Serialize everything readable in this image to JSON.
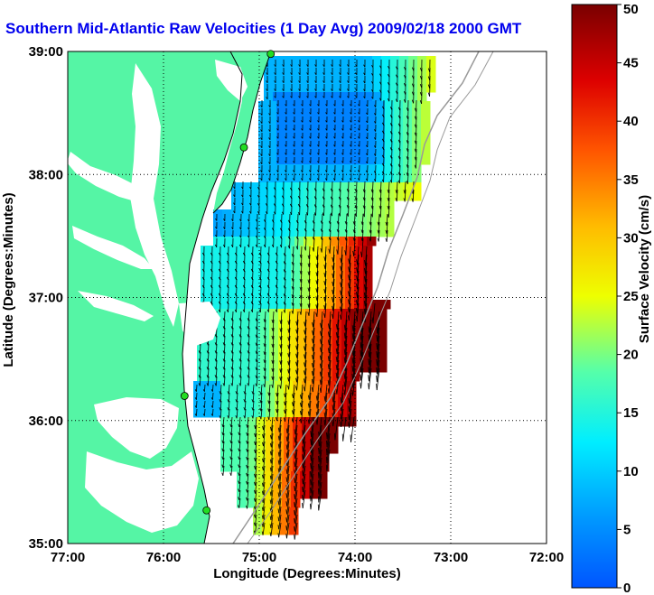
{
  "title": "Southern Mid-Atlantic Raw Velocities (1 Day Avg) 2009/02/18 2000 GMT",
  "x_axis": {
    "label": "Longitude (Degrees:Minutes)",
    "ticks": [
      "77:00",
      "76:00",
      "75:00",
      "74:00",
      "73:00",
      "72:00"
    ]
  },
  "y_axis": {
    "label": "Latitude (Degrees:Minutes)",
    "ticks": [
      "39:00",
      "38:00",
      "37:00",
      "36:00",
      "35:00"
    ]
  },
  "colorbar": {
    "label": "Surface Velocity (cm/s)",
    "ticks": [
      "50",
      "45",
      "40",
      "35",
      "30",
      "25",
      "20",
      "15",
      "10",
      "5",
      "0"
    ]
  },
  "colors": {
    "land": "#55f5a5",
    "grid": "#000000",
    "title": "#0000ee",
    "station": "#22dd22",
    "arrow": "#000000"
  },
  "chart_data": {
    "type": "heatmap",
    "xlim": [
      -77,
      -72
    ],
    "ylim": [
      35,
      39
    ],
    "clim": [
      0,
      50
    ],
    "units": "cm/s",
    "stations": [
      {
        "lon": -74.88,
        "lat": 38.98
      },
      {
        "lon": -75.16,
        "lat": 38.22
      },
      {
        "lon": -75.78,
        "lat": 36.2
      },
      {
        "lon": -75.55,
        "lat": 35.27
      }
    ]
  }
}
